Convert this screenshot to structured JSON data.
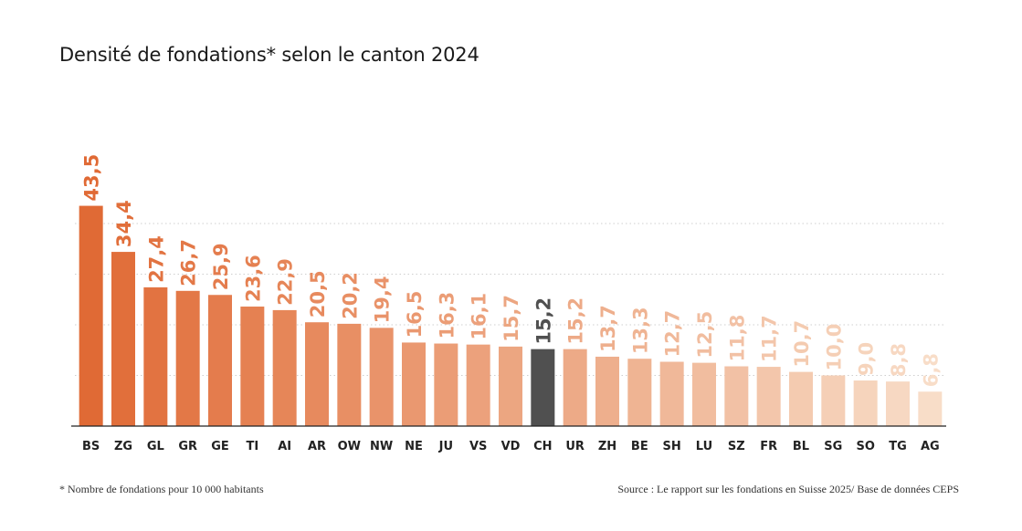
{
  "header": {
    "title": "Densité de fondations* selon le canton 2024"
  },
  "footer": {
    "footnote": "* Nombre de fondations pour 10 000 habitants",
    "source": "Source : Le rapport sur les fondations en Suisse 2025/ Base de données CEPS"
  },
  "colors": {
    "highlight": "#505050",
    "gradient_start": "#e06a35",
    "gradient_end": "#f8ddc8"
  },
  "chart_data": {
    "type": "bar",
    "title": "Densité de fondations* selon le canton 2024",
    "xlabel": "",
    "ylabel": "",
    "ylim": [
      0,
      50
    ],
    "grid": true,
    "legend": "none",
    "highlight": "CH",
    "categories": [
      "BS",
      "ZG",
      "GL",
      "GR",
      "GE",
      "TI",
      "AI",
      "AR",
      "OW",
      "NW",
      "NE",
      "JU",
      "VS",
      "VD",
      "CH",
      "UR",
      "ZH",
      "BE",
      "SH",
      "LU",
      "SZ",
      "FR",
      "BL",
      "SG",
      "SO",
      "TG",
      "AG"
    ],
    "values": [
      43.5,
      34.4,
      27.4,
      26.7,
      25.9,
      23.6,
      22.9,
      20.5,
      20.2,
      19.4,
      16.5,
      16.3,
      16.1,
      15.7,
      15.2,
      15.2,
      13.7,
      13.3,
      12.7,
      12.5,
      11.8,
      11.7,
      10.7,
      10.0,
      9.0,
      8.8,
      6.8
    ],
    "value_labels": [
      "43,5",
      "34,4",
      "27,4",
      "26,7",
      "25,9",
      "23,6",
      "22,9",
      "20,5",
      "20,2",
      "19,4",
      "16,5",
      "16,3",
      "16,1",
      "15,7",
      "15,2",
      "15,2",
      "13,7",
      "13,3",
      "12,7",
      "12,5",
      "11,8",
      "11,7",
      "10,7",
      "10,0",
      "9,0",
      "8,8",
      "6,8"
    ]
  }
}
